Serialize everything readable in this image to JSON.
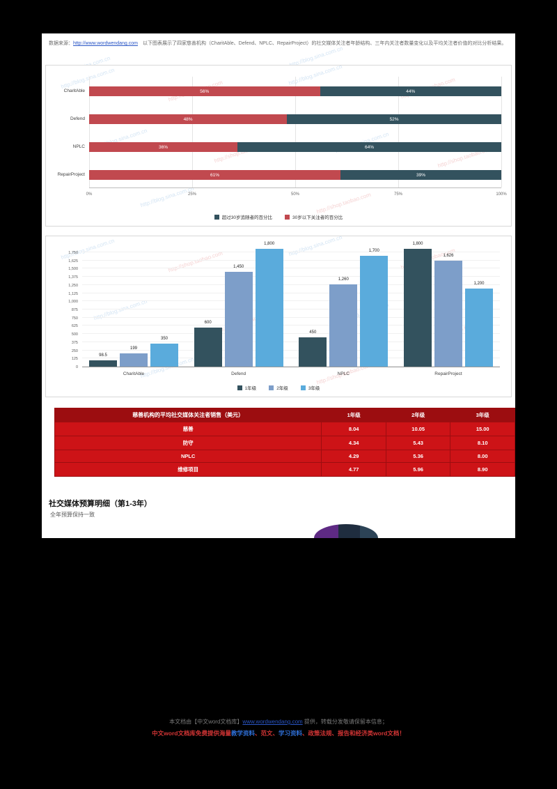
{
  "intro": {
    "segments": [
      {
        "type": "text",
        "text": "数据来源："
      },
      {
        "type": "link",
        "text": "http://www.wordwendang.com"
      },
      {
        "type": "text",
        "text": "　以下图表展示了四家慈善机构（CharitAble、Defend、NPLC、RepairProject）的社交媒体关注者年龄结构、三年内关注者数量变化以及平均关注者价值的对比分析结果。"
      }
    ]
  },
  "chart_data": [
    {
      "type": "bar",
      "orientation": "horizontal-stacked",
      "categories": [
        "CharitAble",
        "Defend",
        "NPLC",
        "RepairProject"
      ],
      "series": [
        {
          "name": "30岁以下关注者的百分比",
          "color": "#c1494f",
          "values": [
            56,
            48,
            36,
            61
          ]
        },
        {
          "name": "超过30岁追随者的百分比",
          "color": "#33525e",
          "values": [
            44,
            52,
            64,
            39
          ]
        }
      ],
      "x_ticks": [
        "0%",
        "25%",
        "50%",
        "75%",
        "100%"
      ],
      "xlim": [
        0,
        100
      ],
      "grid": true,
      "legend_position": "bottom",
      "legend": [
        {
          "label": "超过30岁追随者的百分比",
          "color": "#33525e"
        },
        {
          "label": "30岁以下关注者的百分比",
          "color": "#c1494f"
        }
      ]
    },
    {
      "type": "bar",
      "orientation": "vertical-grouped",
      "categories": [
        "CharitAble",
        "Defend",
        "NPLC",
        "RepairProject"
      ],
      "series": [
        {
          "name": "1年级",
          "color": "#33525e",
          "values": [
            98.5,
            600,
            450,
            1800
          ],
          "labels": [
            "98.5",
            "600",
            "450",
            "1,800"
          ]
        },
        {
          "name": "2年级",
          "color": "#7d9ec9",
          "values": [
            199,
            1450,
            1260,
            1626
          ],
          "labels": [
            "199",
            "1,450",
            "1,260",
            "1,626"
          ]
        },
        {
          "name": "3年级",
          "color": "#5aabdc",
          "values": [
            350,
            1800,
            1700,
            1200
          ],
          "labels": [
            "350",
            "1,800",
            "1,700",
            "1,200"
          ]
        }
      ],
      "ylim": [
        0,
        1750
      ],
      "y_tick_step": 125,
      "grid": true,
      "legend_position": "bottom",
      "legend": [
        {
          "label": "1年级",
          "color": "#33525e"
        },
        {
          "label": "2年级",
          "color": "#7d9ec9"
        },
        {
          "label": "3年级",
          "color": "#5aabdc"
        }
      ]
    }
  ],
  "table": {
    "title": "慈善机构的平均社交媒体关注者销售（美元）",
    "columns": [
      "1年级",
      "2年级",
      "3年级"
    ],
    "rows": [
      {
        "label": "慈善",
        "values": [
          "8.04",
          "10.05",
          "15.00"
        ]
      },
      {
        "label": "防守",
        "values": [
          "4.34",
          "5.43",
          "8.10"
        ]
      },
      {
        "label": "NPLC",
        "values": [
          "4.29",
          "5.36",
          "8.00"
        ]
      },
      {
        "label": "维修项目",
        "values": [
          "4.77",
          "5.96",
          "8.90"
        ]
      }
    ]
  },
  "section": {
    "title": "社交媒体预算明细（第1-3年）",
    "subtitle": "全年预算保持一致"
  },
  "pie": {
    "visible_colors": [
      "#5e2a84",
      "#1f2d3f",
      "#2c4356"
    ]
  },
  "watermarks": {
    "blue": "http://blog.sina.com.cn",
    "red": "http://shop.taobao.com"
  },
  "footer": {
    "line1": [
      {
        "type": "text",
        "text": "本文档由【中文word文档库】"
      },
      {
        "type": "link",
        "text": "www.wordwendang.com"
      },
      {
        "type": "text",
        "text": " 提供，转载分发敬请保留本信息；"
      }
    ],
    "line2": [
      {
        "type": "red",
        "text": "中文word文档库免费提供海量"
      },
      {
        "type": "hl",
        "text": "教学资料"
      },
      {
        "type": "red",
        "text": "、范文、"
      },
      {
        "type": "hl",
        "text": "学习资料"
      },
      {
        "type": "red",
        "text": "、政策法规、报告和经济类word文档！"
      }
    ]
  }
}
